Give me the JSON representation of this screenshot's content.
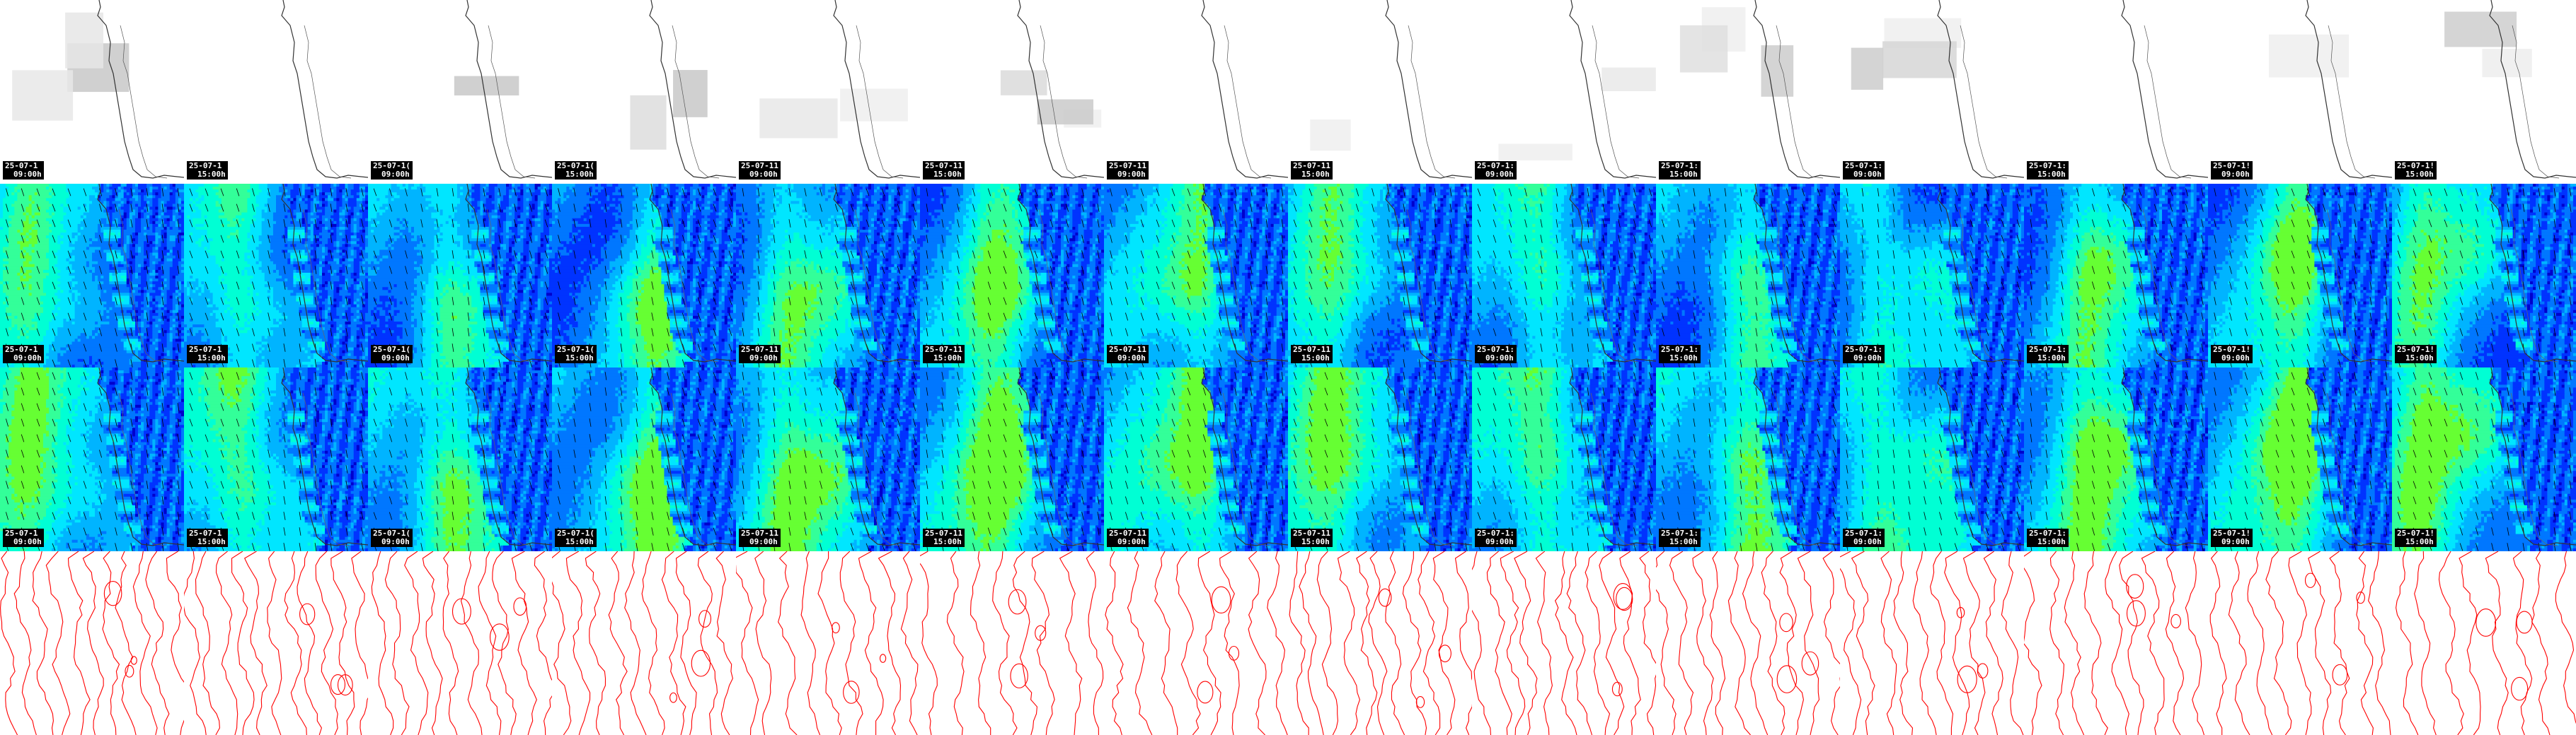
{
  "rows": [
    {
      "name": "cloud-cover",
      "type": "cloud",
      "labelled": true
    },
    {
      "name": "wind-speed-a",
      "type": "wind",
      "labelled": true
    },
    {
      "name": "wind-speed-b",
      "type": "wind2",
      "labelled": true
    },
    {
      "name": "pressure-contours",
      "type": "pressure",
      "labelled": false
    }
  ],
  "frames": [
    {
      "date": "25-07-1",
      "time": "09:00h"
    },
    {
      "date": "25-07-1",
      "time": "15:00h"
    },
    {
      "date": "25-07-1(",
      "time": "09:00h"
    },
    {
      "date": "25-07-1(",
      "time": "15:00h"
    },
    {
      "date": "25-07-11",
      "time": "09:00h"
    },
    {
      "date": "25-07-11",
      "time": "15:00h"
    },
    {
      "date": "25-07-11",
      "time": "09:00h"
    },
    {
      "date": "25-07-11",
      "time": "15:00h"
    },
    {
      "date": "25-07-1:",
      "time": "09:00h"
    },
    {
      "date": "25-07-1:",
      "time": "15:00h"
    },
    {
      "date": "25-07-1:",
      "time": "09:00h"
    },
    {
      "date": "25-07-1:",
      "time": "15:00h"
    },
    {
      "date": "25-07-1!",
      "time": "09:00h"
    },
    {
      "date": "25-07-1!",
      "time": "15:00h"
    }
  ],
  "colors": {
    "wind_levels": [
      "#0000cc",
      "#0033ff",
      "#0077ff",
      "#00b4ff",
      "#00e6ff",
      "#00ffd4",
      "#33ff99",
      "#66ff33"
    ],
    "coast": "#333333",
    "isobar": "#ff0000",
    "cloud": "#bbbbbb",
    "label_bg": "#000000",
    "label_fg": "#ffffff"
  }
}
